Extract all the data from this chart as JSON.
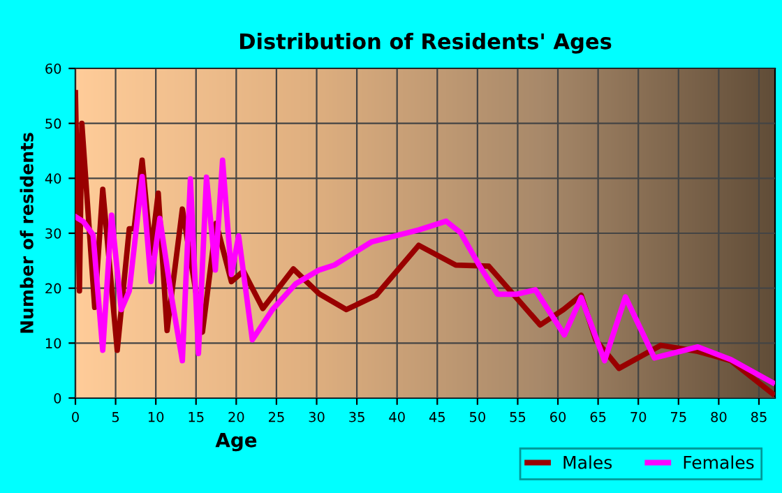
{
  "chart_data": {
    "type": "line",
    "title": "Distribution of Residents' Ages",
    "xlabel": "Age",
    "ylabel": "Number of residents",
    "xlim": [
      0,
      87
    ],
    "ylim": [
      0,
      60
    ],
    "xticks": [
      0,
      5,
      10,
      15,
      20,
      25,
      30,
      35,
      40,
      45,
      50,
      55,
      60,
      65,
      70,
      75,
      80,
      85
    ],
    "yticks": [
      0,
      10,
      20,
      30,
      40,
      50,
      60
    ],
    "grid": true,
    "legend": "bottom right",
    "line_style": "solid",
    "marker": "none",
    "series": [
      {
        "name": "Males",
        "color": "#990000",
        "x": [
          0,
          0.5,
          0.8,
          2.4,
          3.4,
          5.2,
          6.7,
          7.3,
          8.3,
          9.4,
          10.3,
          11.4,
          13.3,
          15.8,
          17.5,
          19.4,
          20.9,
          23.3,
          27.1,
          30.3,
          33.7,
          37.4,
          42.7,
          47.3,
          51.4,
          57.8,
          60.7,
          62.9,
          64.7,
          67.6,
          72.8,
          77.4,
          81.5,
          86.7
        ],
        "values": [
          55.6,
          19.5,
          50,
          16.5,
          38,
          8.7,
          30.8,
          30.8,
          43.3,
          26.3,
          37.3,
          12.3,
          34.4,
          12,
          31.8,
          21.2,
          23.1,
          16.3,
          23.5,
          19,
          16.1,
          18.7,
          27.8,
          24.2,
          24,
          13.3,
          16.1,
          18.7,
          10.6,
          5.4,
          9.6,
          8.5,
          6.8,
          0.8
        ]
      },
      {
        "name": "Females",
        "color": "#ff00ff",
        "x": [
          0,
          1,
          2.2,
          3.4,
          4.5,
          5.7,
          6.7,
          8.3,
          9.4,
          10.5,
          11.9,
          13.3,
          14.3,
          15.3,
          16.3,
          17.4,
          18.3,
          19.4,
          20.3,
          22,
          24.5,
          27.4,
          30.3,
          32.2,
          36.8,
          42.7,
          46.1,
          47.9,
          50.2,
          52.5,
          54.9,
          57.2,
          60.8,
          62.9,
          65.8,
          68.4,
          72,
          77.4,
          81.5,
          86.7
        ],
        "values": [
          33,
          32.1,
          29.7,
          8.7,
          33.3,
          16.1,
          19.5,
          40.3,
          21.2,
          32.7,
          18.9,
          6.8,
          39.9,
          8.1,
          40.2,
          23.3,
          43.3,
          22.5,
          29.5,
          10.6,
          16.1,
          20.8,
          23.3,
          24.2,
          28.4,
          30.6,
          32.2,
          30.1,
          24.2,
          18.9,
          18.9,
          19.7,
          11.5,
          18.3,
          6.8,
          18.4,
          7.3,
          9.3,
          7,
          2.8
        ]
      }
    ]
  }
}
